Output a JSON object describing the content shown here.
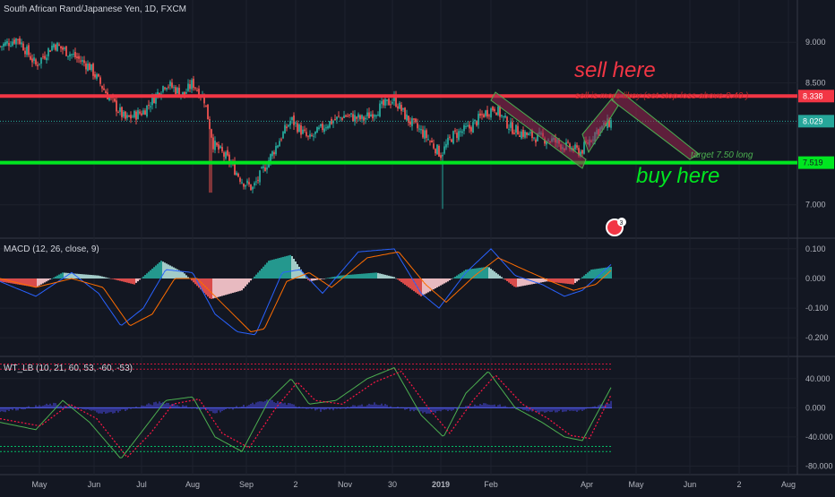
{
  "chart_data": {
    "type": "candlestick",
    "title": "South African Rand/Japanese Yen, 1D, FXCM",
    "price": {
      "ylim": [
        6.6,
        9.3
      ],
      "ticks": [
        {
          "value": 9.0,
          "label": "9.000"
        },
        {
          "value": 8.5,
          "label": "8.500"
        },
        {
          "value": 8.0,
          "label": "8.000"
        },
        {
          "value": 7.5,
          "label": "7.500"
        },
        {
          "value": 7.0,
          "label": "7.000"
        }
      ],
      "waypoints": [
        {
          "t": 0,
          "v": 8.95
        },
        {
          "t": 20,
          "v": 9.05
        },
        {
          "t": 40,
          "v": 8.72
        },
        {
          "t": 60,
          "v": 8.98
        },
        {
          "t": 80,
          "v": 8.85
        },
        {
          "t": 100,
          "v": 8.7
        },
        {
          "t": 120,
          "v": 8.35
        },
        {
          "t": 140,
          "v": 8.05
        },
        {
          "t": 160,
          "v": 8.15
        },
        {
          "t": 185,
          "v": 8.5
        },
        {
          "t": 205,
          "v": 8.35
        },
        {
          "t": 215,
          "v": 8.5
        },
        {
          "t": 228,
          "v": 8.3
        },
        {
          "t": 238,
          "v": 7.75
        },
        {
          "t": 255,
          "v": 7.55
        },
        {
          "t": 270,
          "v": 7.3
        },
        {
          "t": 282,
          "v": 7.2
        },
        {
          "t": 300,
          "v": 7.55
        },
        {
          "t": 312,
          "v": 7.8
        },
        {
          "t": 325,
          "v": 8.05
        },
        {
          "t": 345,
          "v": 7.8
        },
        {
          "t": 365,
          "v": 8.0
        },
        {
          "t": 385,
          "v": 8.1
        },
        {
          "t": 405,
          "v": 8.05
        },
        {
          "t": 425,
          "v": 8.2
        },
        {
          "t": 440,
          "v": 8.3
        },
        {
          "t": 455,
          "v": 8.05
        },
        {
          "t": 475,
          "v": 7.85
        },
        {
          "t": 492,
          "v": 7.62
        },
        {
          "t": 505,
          "v": 7.85
        },
        {
          "t": 525,
          "v": 7.95
        },
        {
          "t": 540,
          "v": 8.12
        },
        {
          "t": 552,
          "v": 8.2
        },
        {
          "t": 570,
          "v": 7.95
        },
        {
          "t": 590,
          "v": 7.85
        },
        {
          "t": 615,
          "v": 7.8
        },
        {
          "t": 630,
          "v": 7.72
        },
        {
          "t": 648,
          "v": 7.65
        },
        {
          "t": 665,
          "v": 7.9
        },
        {
          "t": 683,
          "v": 8.03
        }
      ],
      "lows": [
        {
          "t": 235,
          "v": 7.15
        },
        {
          "t": 494,
          "v": 6.95
        }
      ],
      "last": {
        "value": 8.029,
        "label": "8.029"
      }
    },
    "levels": [
      {
        "name": "sell-level",
        "value": 8.338,
        "label": "8.338",
        "color": "#f23645"
      },
      {
        "name": "buy-level",
        "value": 7.519,
        "label": "7.519",
        "color": "#00e620"
      }
    ],
    "annotations": {
      "sell": "sell here",
      "sell_note": "sell is more likey (set stop loss above 8.40 )",
      "buy": "buy here",
      "target": "target 7.50 long",
      "badge": "3"
    },
    "x_ticks": [
      "May",
      "Jun",
      "Jul",
      "Aug",
      "Sep",
      "2",
      "Nov",
      "30",
      "2019",
      "Feb",
      "Apr",
      "May",
      "Jun",
      "2",
      "Aug"
    ],
    "macd": {
      "title": "MACD (12, 26, close, 9)",
      "ylim": [
        -0.26,
        0.13
      ],
      "ticks": [
        {
          "value": 0.1,
          "label": "0.100"
        },
        {
          "value": 0.0,
          "label": "0.000"
        },
        {
          "value": -0.1,
          "label": "-0.100"
        },
        {
          "value": -0.2,
          "label": "-0.200"
        }
      ],
      "hist_waypoints": [
        {
          "t": 0,
          "v": -0.01
        },
        {
          "t": 40,
          "v": -0.03
        },
        {
          "t": 70,
          "v": 0.02
        },
        {
          "t": 110,
          "v": 0.01
        },
        {
          "t": 150,
          "v": -0.02
        },
        {
          "t": 180,
          "v": 0.06
        },
        {
          "t": 205,
          "v": 0.02
        },
        {
          "t": 235,
          "v": -0.07
        },
        {
          "t": 270,
          "v": -0.04
        },
        {
          "t": 300,
          "v": 0.06
        },
        {
          "t": 325,
          "v": 0.08
        },
        {
          "t": 345,
          "v": -0.01
        },
        {
          "t": 380,
          "v": 0.01
        },
        {
          "t": 420,
          "v": 0.02
        },
        {
          "t": 440,
          "v": 0.005
        },
        {
          "t": 470,
          "v": -0.06
        },
        {
          "t": 500,
          "v": -0.01
        },
        {
          "t": 520,
          "v": 0.03
        },
        {
          "t": 545,
          "v": 0.04
        },
        {
          "t": 575,
          "v": -0.03
        },
        {
          "t": 610,
          "v": -0.01
        },
        {
          "t": 640,
          "v": -0.02
        },
        {
          "t": 660,
          "v": 0.03
        },
        {
          "t": 683,
          "v": 0.04
        }
      ],
      "macd_waypoints": [
        {
          "t": 0,
          "v": -0.01
        },
        {
          "t": 40,
          "v": -0.06
        },
        {
          "t": 80,
          "v": 0.02
        },
        {
          "t": 110,
          "v": -0.05
        },
        {
          "t": 135,
          "v": -0.16
        },
        {
          "t": 160,
          "v": -0.1
        },
        {
          "t": 185,
          "v": 0.03
        },
        {
          "t": 215,
          "v": 0.02
        },
        {
          "t": 240,
          "v": -0.12
        },
        {
          "t": 265,
          "v": -0.18
        },
        {
          "t": 285,
          "v": -0.19
        },
        {
          "t": 315,
          "v": 0.02
        },
        {
          "t": 335,
          "v": 0.03
        },
        {
          "t": 360,
          "v": -0.05
        },
        {
          "t": 400,
          "v": 0.09
        },
        {
          "t": 440,
          "v": 0.1
        },
        {
          "t": 470,
          "v": -0.05
        },
        {
          "t": 490,
          "v": -0.1
        },
        {
          "t": 520,
          "v": 0.02
        },
        {
          "t": 548,
          "v": 0.1
        },
        {
          "t": 575,
          "v": 0.01
        },
        {
          "t": 605,
          "v": -0.02
        },
        {
          "t": 630,
          "v": -0.06
        },
        {
          "t": 650,
          "v": -0.04
        },
        {
          "t": 683,
          "v": 0.05
        }
      ],
      "signal_waypoints": [
        {
          "t": 0,
          "v": 0.0
        },
        {
          "t": 40,
          "v": -0.03
        },
        {
          "t": 80,
          "v": 0.0
        },
        {
          "t": 115,
          "v": -0.03
        },
        {
          "t": 145,
          "v": -0.16
        },
        {
          "t": 170,
          "v": -0.12
        },
        {
          "t": 195,
          "v": 0.0
        },
        {
          "t": 220,
          "v": 0.0
        },
        {
          "t": 250,
          "v": -0.09
        },
        {
          "t": 280,
          "v": -0.18
        },
        {
          "t": 295,
          "v": -0.17
        },
        {
          "t": 320,
          "v": -0.01
        },
        {
          "t": 345,
          "v": 0.02
        },
        {
          "t": 370,
          "v": -0.03
        },
        {
          "t": 410,
          "v": 0.07
        },
        {
          "t": 445,
          "v": 0.09
        },
        {
          "t": 475,
          "v": -0.02
        },
        {
          "t": 498,
          "v": -0.08
        },
        {
          "t": 530,
          "v": 0.01
        },
        {
          "t": 556,
          "v": 0.07
        },
        {
          "t": 585,
          "v": 0.03
        },
        {
          "t": 615,
          "v": -0.01
        },
        {
          "t": 640,
          "v": -0.04
        },
        {
          "t": 665,
          "v": -0.02
        },
        {
          "t": 683,
          "v": 0.03
        }
      ]
    },
    "wt": {
      "title": "WT_LB (10, 21, 60, 53, -60, -53)",
      "ylim": [
        -88,
        68
      ],
      "ticks": [
        {
          "value": 40,
          "label": "40.000"
        },
        {
          "value": 0,
          "label": "0.000"
        },
        {
          "value": -40,
          "label": "-40.000"
        },
        {
          "value": -80,
          "label": "-80.000"
        }
      ],
      "levels": [
        60,
        53,
        -60,
        -53
      ],
      "wt1_waypoints": [
        {
          "t": 0,
          "v": -20
        },
        {
          "t": 40,
          "v": -30
        },
        {
          "t": 70,
          "v": 10
        },
        {
          "t": 100,
          "v": -20
        },
        {
          "t": 135,
          "v": -70
        },
        {
          "t": 160,
          "v": -30
        },
        {
          "t": 185,
          "v": 10
        },
        {
          "t": 215,
          "v": 15
        },
        {
          "t": 240,
          "v": -40
        },
        {
          "t": 270,
          "v": -60
        },
        {
          "t": 300,
          "v": 10
        },
        {
          "t": 325,
          "v": 40
        },
        {
          "t": 345,
          "v": 5
        },
        {
          "t": 375,
          "v": 10
        },
        {
          "t": 410,
          "v": 40
        },
        {
          "t": 440,
          "v": 55
        },
        {
          "t": 470,
          "v": -10
        },
        {
          "t": 495,
          "v": -40
        },
        {
          "t": 520,
          "v": 20
        },
        {
          "t": 545,
          "v": 50
        },
        {
          "t": 575,
          "v": 0
        },
        {
          "t": 605,
          "v": -20
        },
        {
          "t": 630,
          "v": -40
        },
        {
          "t": 650,
          "v": -45
        },
        {
          "t": 683,
          "v": 30
        }
      ],
      "wt2_waypoints": [
        {
          "t": 0,
          "v": -15
        },
        {
          "t": 45,
          "v": -25
        },
        {
          "t": 78,
          "v": 5
        },
        {
          "t": 108,
          "v": -15
        },
        {
          "t": 142,
          "v": -68
        },
        {
          "t": 168,
          "v": -35
        },
        {
          "t": 193,
          "v": 5
        },
        {
          "t": 222,
          "v": 12
        },
        {
          "t": 248,
          "v": -35
        },
        {
          "t": 278,
          "v": -55
        },
        {
          "t": 308,
          "v": 0
        },
        {
          "t": 332,
          "v": 35
        },
        {
          "t": 352,
          "v": 10
        },
        {
          "t": 382,
          "v": 5
        },
        {
          "t": 418,
          "v": 35
        },
        {
          "t": 448,
          "v": 50
        },
        {
          "t": 478,
          "v": 0
        },
        {
          "t": 502,
          "v": -35
        },
        {
          "t": 528,
          "v": 10
        },
        {
          "t": 553,
          "v": 45
        },
        {
          "t": 583,
          "v": 5
        },
        {
          "t": 612,
          "v": -15
        },
        {
          "t": 637,
          "v": -38
        },
        {
          "t": 658,
          "v": -42
        },
        {
          "t": 683,
          "v": 20
        }
      ],
      "hist_waypoints": [
        {
          "t": 0,
          "v": -5
        },
        {
          "t": 60,
          "v": 5
        },
        {
          "t": 120,
          "v": -8
        },
        {
          "t": 180,
          "v": 8
        },
        {
          "t": 240,
          "v": -6
        },
        {
          "t": 300,
          "v": 10
        },
        {
          "t": 360,
          "v": -4
        },
        {
          "t": 420,
          "v": 6
        },
        {
          "t": 480,
          "v": -8
        },
        {
          "t": 540,
          "v": 6
        },
        {
          "t": 600,
          "v": -5
        },
        {
          "t": 650,
          "v": -4
        },
        {
          "t": 683,
          "v": 8
        }
      ]
    },
    "colors": {
      "bg": "#131722",
      "bull": "#26a69a",
      "bear": "#ef5350",
      "text": "#b2b5be",
      "grid": "#1e222d",
      "macd_line": "#2962ff",
      "signal_line": "#ff6d00",
      "wt1": "#4caf50",
      "wt2": "#ff1744",
      "wt_hist": "#3f3fbf",
      "channel": "#4caf50",
      "channel_fill": "#9c2750",
      "label_bg": "#131722"
    }
  }
}
